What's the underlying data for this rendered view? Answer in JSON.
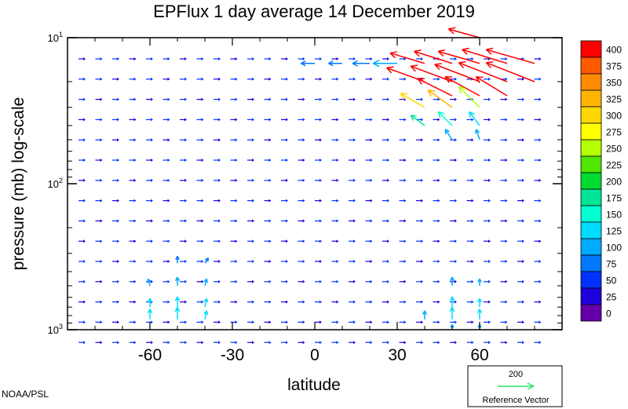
{
  "chart_data": {
    "type": "vector-field",
    "title": "EPFlux  1 day average  14 December 2019",
    "xlabel": "latitude",
    "ylabel": "pressure (mb)  log-scale",
    "xlim": [
      -90,
      90
    ],
    "xticks": [
      -60,
      -30,
      0,
      30,
      60
    ],
    "xtick_labels": [
      "-60",
      "-30",
      "0",
      "30",
      "60"
    ],
    "ylim": [
      10,
      1000
    ],
    "yscale": "log",
    "yticks": [
      {
        "value": 10,
        "base": "10",
        "exp": "1"
      },
      {
        "value": 100,
        "base": "10",
        "exp": "2"
      },
      {
        "value": 1000,
        "base": "10",
        "exp": "3"
      }
    ],
    "colorbar": {
      "labels": [
        "400",
        "375",
        "350",
        "325",
        "300",
        "275",
        "250",
        "225",
        "200",
        "175",
        "150",
        "125",
        "100",
        "75",
        "50",
        "25",
        "0"
      ],
      "colors": [
        "#ff0000",
        "#ff5a00",
        "#ff8c00",
        "#ffb400",
        "#ffd700",
        "#ffff00",
        "#b4ff00",
        "#50e600",
        "#00dc32",
        "#00e696",
        "#00ffd2",
        "#00dcff",
        "#00aaff",
        "#0078ff",
        "#0032ff",
        "#1e00dc",
        "#6400aa"
      ]
    },
    "reference_vector": {
      "value": "200",
      "label": "Reference Vector",
      "color": "#32e664"
    },
    "credit": "NOAA/PSL",
    "vectors": [
      {
        "lat": 60,
        "p": 10,
        "u": -18,
        "v": 5,
        "mag": 400
      },
      {
        "lat": 40,
        "p": 15,
        "u": -20,
        "v": 6,
        "mag": 400
      },
      {
        "lat": 50,
        "p": 15,
        "u": -22,
        "v": 7,
        "mag": 400
      },
      {
        "lat": 60,
        "p": 15,
        "u": -24,
        "v": 7,
        "mag": 400
      },
      {
        "lat": 70,
        "p": 15,
        "u": -26,
        "v": 8,
        "mag": 400
      },
      {
        "lat": 80,
        "p": 15,
        "u": -28,
        "v": 8,
        "mag": 400
      },
      {
        "lat": 40,
        "p": 20,
        "u": -22,
        "v": 8,
        "mag": 400
      },
      {
        "lat": 50,
        "p": 20,
        "u": -24,
        "v": 9,
        "mag": 400
      },
      {
        "lat": 60,
        "p": 20,
        "u": -26,
        "v": 10,
        "mag": 400
      },
      {
        "lat": 70,
        "p": 20,
        "u": -28,
        "v": 11,
        "mag": 400
      },
      {
        "lat": 80,
        "p": 20,
        "u": -28,
        "v": 11,
        "mag": 400
      },
      {
        "lat": 50,
        "p": 25,
        "u": -20,
        "v": 10,
        "mag": 400
      },
      {
        "lat": 60,
        "p": 25,
        "u": -20,
        "v": 11,
        "mag": 400
      },
      {
        "lat": 70,
        "p": 25,
        "u": -18,
        "v": 11,
        "mag": 400
      },
      {
        "lat": 40,
        "p": 30,
        "u": -14,
        "v": 8,
        "mag": 300
      },
      {
        "lat": 50,
        "p": 30,
        "u": -14,
        "v": 10,
        "mag": 325
      },
      {
        "lat": 60,
        "p": 30,
        "u": -12,
        "v": 12,
        "mag": 250
      },
      {
        "lat": 40,
        "p": 40,
        "u": -8,
        "v": 6,
        "mag": 175
      },
      {
        "lat": 50,
        "p": 40,
        "u": -8,
        "v": 8,
        "mag": 150
      },
      {
        "lat": 60,
        "p": 40,
        "u": -6,
        "v": 8,
        "mag": 125
      },
      {
        "lat": 50,
        "p": 50,
        "u": -4,
        "v": 6,
        "mag": 100
      },
      {
        "lat": 60,
        "p": 50,
        "u": -2,
        "v": 6,
        "mag": 100
      },
      {
        "lat": 30,
        "p": 15,
        "u": -14,
        "v": 0,
        "mag": 100
      },
      {
        "lat": 20,
        "p": 15,
        "u": -10,
        "v": 0,
        "mag": 75
      },
      {
        "lat": 10,
        "p": 15,
        "u": -8,
        "v": 0,
        "mag": 75
      },
      {
        "lat": 0,
        "p": 15,
        "u": -8,
        "v": 0,
        "mag": 75
      },
      {
        "lat": -50,
        "p": 350,
        "u": 0,
        "v": 4,
        "mag": 75
      },
      {
        "lat": -40,
        "p": 350,
        "u": 2,
        "v": 3,
        "mag": 75
      },
      {
        "lat": -50,
        "p": 500,
        "u": 0,
        "v": 5,
        "mag": 100
      },
      {
        "lat": -60,
        "p": 500,
        "u": -1,
        "v": 4,
        "mag": 100
      },
      {
        "lat": -40,
        "p": 500,
        "u": 1,
        "v": 4,
        "mag": 100
      },
      {
        "lat": -50,
        "p": 700,
        "u": 0,
        "v": 6,
        "mag": 125
      },
      {
        "lat": -60,
        "p": 700,
        "u": 0,
        "v": 5,
        "mag": 125
      },
      {
        "lat": -40,
        "p": 700,
        "u": 1,
        "v": 5,
        "mag": 125
      },
      {
        "lat": -50,
        "p": 850,
        "u": 0,
        "v": 7,
        "mag": 125
      },
      {
        "lat": -60,
        "p": 850,
        "u": 0,
        "v": 6,
        "mag": 125
      },
      {
        "lat": -40,
        "p": 850,
        "u": 1,
        "v": 5,
        "mag": 125
      },
      {
        "lat": 50,
        "p": 500,
        "u": 0,
        "v": 5,
        "mag": 100
      },
      {
        "lat": 60,
        "p": 500,
        "u": 0,
        "v": 4,
        "mag": 100
      },
      {
        "lat": 50,
        "p": 700,
        "u": 0,
        "v": 6,
        "mag": 125
      },
      {
        "lat": 60,
        "p": 700,
        "u": 0,
        "v": 5,
        "mag": 125
      },
      {
        "lat": 50,
        "p": 850,
        "u": 0,
        "v": 7,
        "mag": 125
      },
      {
        "lat": 60,
        "p": 850,
        "u": 0,
        "v": 6,
        "mag": 125
      },
      {
        "lat": 40,
        "p": 850,
        "u": 0,
        "v": 5,
        "mag": 100
      },
      {
        "lat": 50,
        "p": 1000,
        "u": 0,
        "v": 3,
        "mag": 100
      },
      {
        "lat": 60,
        "p": 1000,
        "u": 0,
        "v": 3,
        "mag": 100
      }
    ]
  }
}
